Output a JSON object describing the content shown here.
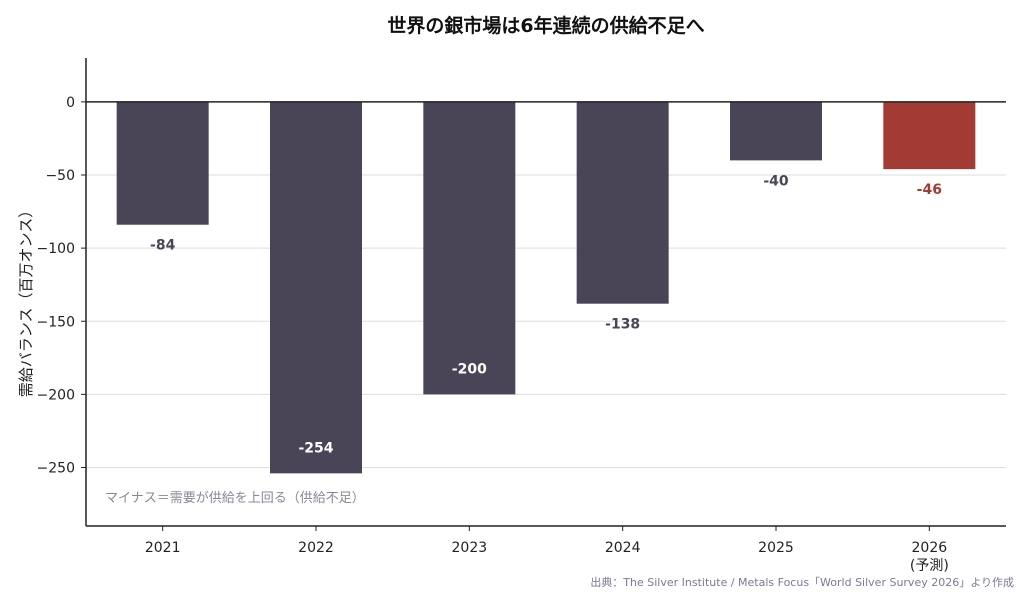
{
  "chart_data": {
    "type": "bar",
    "title": "世界の銀市場は6年連続の供給不足へ",
    "ylabel": "需給バランス（百万オンス）",
    "xlabel": "",
    "categories": [
      "2021",
      "2022",
      "2023",
      "2024",
      "2025",
      "2026\n(予測)"
    ],
    "values": [
      -84,
      -254,
      -200,
      -138,
      -40,
      -46
    ],
    "data_labels": [
      "-84",
      "-254",
      "-200",
      "-138",
      "-40",
      "-46"
    ],
    "ylim": [
      -290,
      30
    ],
    "yticks": [
      0,
      -50,
      -100,
      -150,
      -200,
      -250
    ],
    "ytick_labels": [
      "0",
      "−50",
      "−100",
      "−150",
      "−200",
      "−250"
    ],
    "grid": true,
    "legend": "none",
    "annotation": "マイナス＝需要が供給を上回る（供給不足）",
    "source": "出典：The Silver Institute / Metals Focus「World Silver Survey 2026」より作成",
    "bar_colors": [
      "#4a4556",
      "#4a4556",
      "#4a4556",
      "#4a4556",
      "#4a4556",
      "#a23b34"
    ],
    "label_colors": [
      "#4a4556",
      "#ffffff",
      "#ffffff",
      "#4a4556",
      "#4a4556",
      "#a23b34"
    ],
    "colors": {
      "bar": "#4a4556",
      "forecast": "#a23b34",
      "grid": "#dddddd",
      "axis": "#222222",
      "note": "#8b8698",
      "source": "#7e7896"
    }
  }
}
